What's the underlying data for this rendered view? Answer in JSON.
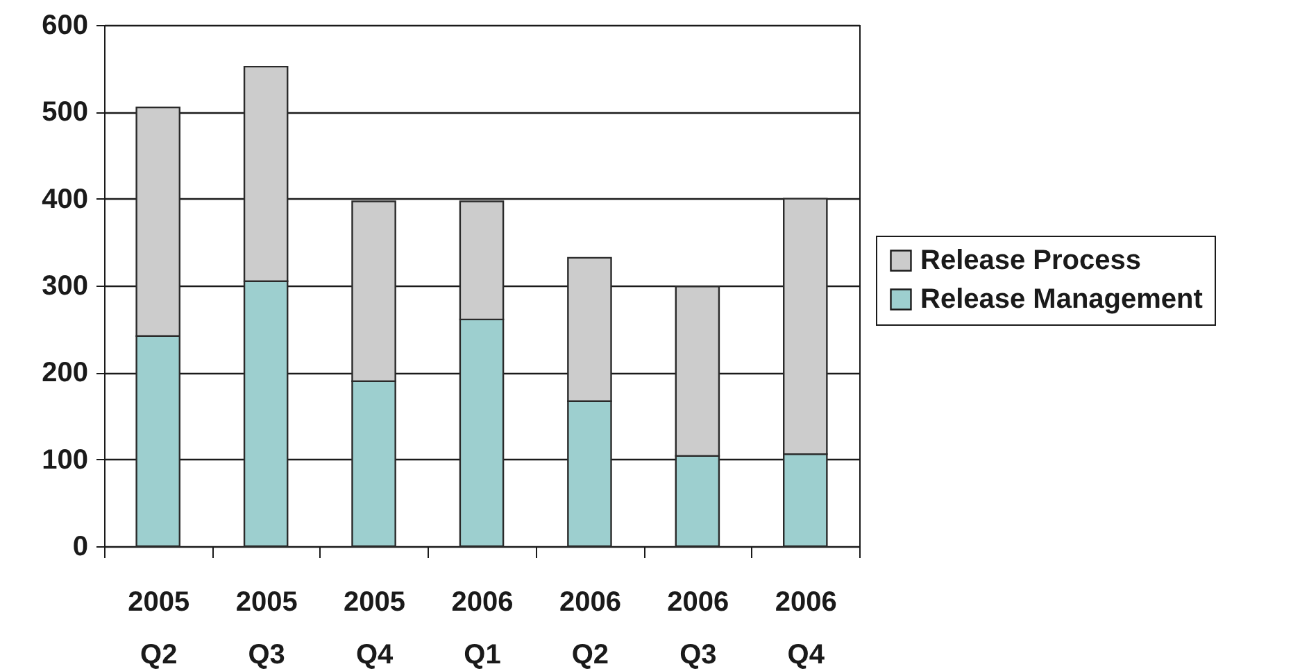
{
  "chart_data": {
    "type": "bar",
    "categories": [
      "2005 Q2",
      "2005 Q3",
      "2005 Q4",
      "2006 Q1",
      "2006 Q2",
      "2006 Q3",
      "2006 Q4"
    ],
    "series": [
      {
        "name": "Release Management",
        "color": "#9dcfcf",
        "values": [
          242,
          305,
          190,
          261,
          167,
          104,
          106
        ]
      },
      {
        "name": "Release Process",
        "color": "#cccccc",
        "values": [
          263,
          247,
          207,
          136,
          165,
          195,
          294
        ]
      }
    ],
    "stacked": true,
    "ylim": [
      0,
      600
    ],
    "yticks": [
      0,
      100,
      200,
      300,
      400,
      500,
      600
    ],
    "grid": "y",
    "legend": "right"
  }
}
